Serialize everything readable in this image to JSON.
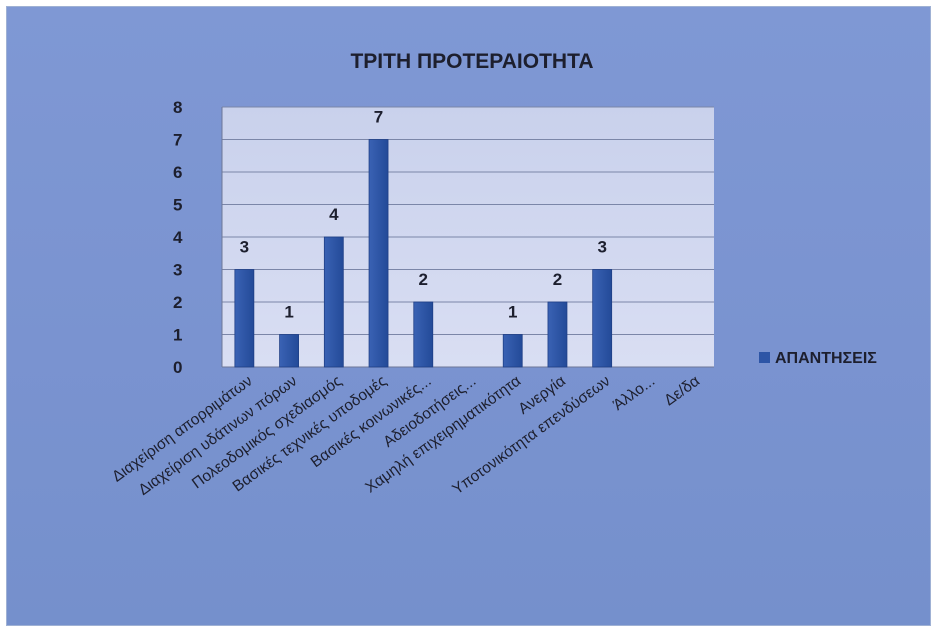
{
  "chart_data": {
    "type": "bar",
    "title": "ΤΡΙΤΗ ΠΡΟΤΕΡΑΙΟΤΗΤΑ",
    "xlabel": "",
    "ylabel": "",
    "ylim": [
      0,
      8
    ],
    "yticks": [
      0,
      1,
      2,
      3,
      4,
      5,
      6,
      7,
      8
    ],
    "grid": true,
    "legend_position": "right",
    "categories": [
      "Διαχείριση απορριμάτων",
      "Διαχείριση υδάτινων πόρων",
      "Πολεοδομικός σχεδιασμός",
      "Βασικές τεχνικές υποδομές",
      "Βασικές κοινωνικές...",
      "Αδειοδοτήσεις...",
      "Χαμηλή επιχειρηματικότητα",
      "Ανεργία",
      "Υποτονικότητα επενδύσεων",
      "Άλλο...",
      "Δε/δα"
    ],
    "series": [
      {
        "name": "ΑΠΑΝΤΗΣΕΙΣ",
        "color": "#2d55a6",
        "values": [
          3,
          1,
          4,
          7,
          2,
          0,
          1,
          2,
          3,
          0,
          0
        ]
      }
    ],
    "data_labels": [
      "3",
      "1",
      "4",
      "7",
      "2",
      "",
      "1",
      "2",
      "3",
      "",
      ""
    ]
  }
}
